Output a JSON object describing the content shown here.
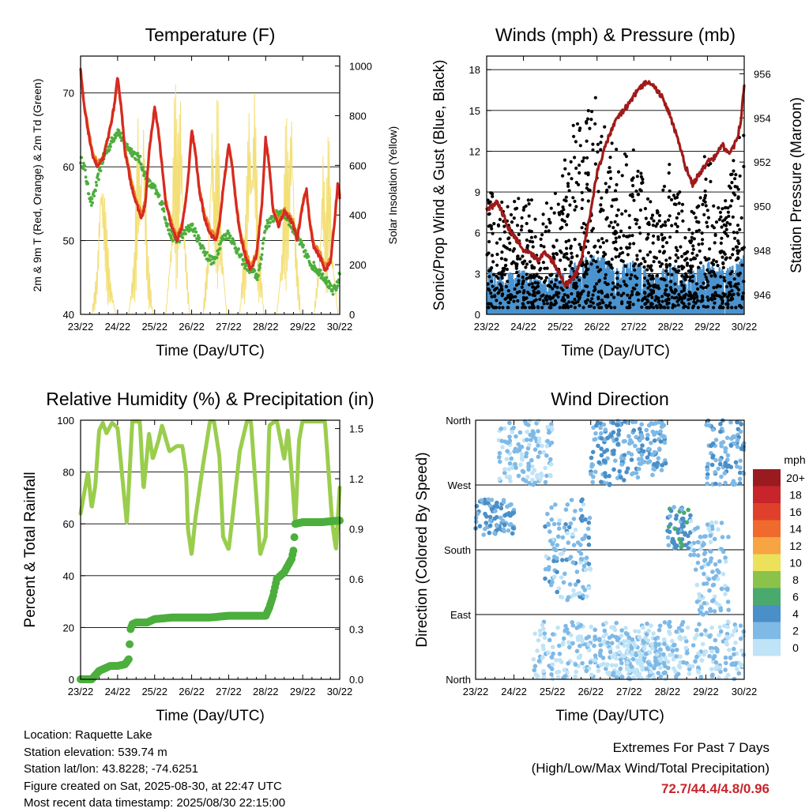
{
  "info": {
    "location": "Location: Raquette Lake",
    "elevation": "Station elevation: 539.74 m",
    "latlon": "Station lat/lon: 43.8228; -74.6251",
    "created": "Figure created on Sat, 2025-08-30, at 22:47 UTC",
    "recent": "Most recent data timestamp: 2025/08/30 22:15:00"
  },
  "extremes": {
    "title": "Extremes For Past 7 Days",
    "subtitle": "(High/Low/Max Wind/Total Precipitation)",
    "values": "72.7/44.4/4.8/0.96"
  },
  "colors": {
    "temp2m": "#d62a23",
    "temp9m": "#f08a24",
    "dewpoint": "#4cae3c",
    "solar": "#f3df77",
    "gust": "#000000",
    "sonic": "#4a93cf",
    "pressure": "#a01a1a",
    "rh": "#9acd4d",
    "precip": "#4cae3c"
  },
  "chart_data": [
    {
      "type": "line",
      "title": "Temperature (F)",
      "xlabel": "Time (Day/UTC)",
      "ylabel": "2m & 9m T (Red, Orange) & 2m Td (Green)",
      "y2label": "Solar Insolation (Yellow)",
      "x_ticks": [
        "23/22",
        "24/22",
        "25/22",
        "26/22",
        "27/22",
        "28/22",
        "29/22",
        "30/22"
      ],
      "xlim": [
        0,
        7
      ],
      "ylim": [
        40,
        75
      ],
      "y_ticks": [
        40,
        50,
        60,
        70
      ],
      "y2lim": [
        0,
        1040
      ],
      "y2_ticks": [
        0,
        200,
        400,
        600,
        800,
        1000
      ],
      "series": [
        {
          "key": "temp2m",
          "x": [
            0,
            0.1,
            0.2,
            0.3,
            0.45,
            0.6,
            0.75,
            0.9,
            1.0,
            1.1,
            1.2,
            1.35,
            1.5,
            1.65,
            1.75,
            1.85,
            2.0,
            2.1,
            2.2,
            2.3,
            2.45,
            2.6,
            2.75,
            2.9,
            3.0,
            3.1,
            3.2,
            3.35,
            3.5,
            3.65,
            3.75,
            3.85,
            4.0,
            4.1,
            4.2,
            4.3,
            4.45,
            4.6,
            4.75,
            4.9,
            5.0,
            5.1,
            5.2,
            5.35,
            5.5,
            5.65,
            5.75,
            5.85,
            6.0,
            6.1,
            6.2,
            6.3,
            6.45,
            6.6,
            6.75,
            6.85,
            6.95,
            7.0
          ],
          "values": [
            73,
            68,
            65,
            62,
            60,
            61,
            64,
            68,
            72,
            68,
            62,
            58,
            55,
            53,
            55,
            62,
            68,
            65,
            60,
            55,
            52,
            50,
            52,
            58,
            65,
            62,
            57,
            53,
            51,
            50,
            52,
            57,
            63,
            60,
            55,
            51,
            48,
            46,
            48,
            55,
            64,
            60,
            54,
            52,
            54,
            53,
            52,
            50,
            55,
            57,
            52,
            49,
            48,
            46,
            47,
            52,
            58,
            56
          ],
          "ylim": [
            40,
            75
          ]
        },
        {
          "key": "temp9m",
          "x": [
            0,
            0.1,
            0.2,
            0.3,
            0.45,
            0.6,
            0.75,
            0.9,
            1.0,
            1.1,
            1.2,
            1.35,
            1.5,
            1.65,
            1.75,
            1.85,
            2.0,
            2.1,
            2.2,
            2.3,
            2.45,
            2.6,
            2.75,
            2.9,
            3.0,
            3.1,
            3.2,
            3.35,
            3.5,
            3.65,
            3.75,
            3.85,
            4.0,
            4.1,
            4.2,
            4.3,
            4.45,
            4.6,
            4.75,
            4.9,
            5.0,
            5.1,
            5.2,
            5.35,
            5.5,
            5.65,
            5.75,
            5.85,
            6.0,
            6.1,
            6.2,
            6.3,
            6.45,
            6.6,
            6.75,
            6.85,
            6.95,
            7.0
          ],
          "values": [
            72.5,
            68.5,
            65.5,
            62.5,
            60.5,
            61.2,
            64.2,
            67.8,
            71.5,
            68.2,
            62.4,
            58.6,
            55.6,
            53.6,
            55.4,
            61.8,
            67.6,
            65.2,
            60.4,
            55.6,
            52.6,
            50.6,
            52.4,
            57.8,
            64.6,
            62.2,
            57.4,
            53.6,
            51.6,
            50.6,
            52.4,
            56.8,
            62.6,
            60.2,
            55.4,
            51.6,
            48.6,
            46.6,
            48.4,
            54.8,
            63.6,
            60.2,
            54.4,
            52.6,
            54.2,
            53.4,
            52.4,
            50.6,
            55.2,
            56.8,
            52.4,
            49.6,
            48.6,
            46.6,
            47.4,
            51.8,
            57.6,
            56.2
          ],
          "ylim": [
            40,
            75
          ]
        },
        {
          "key": "dewpoint",
          "x": [
            0,
            0.1,
            0.2,
            0.3,
            0.4,
            0.6,
            0.8,
            1.0,
            1.2,
            1.4,
            1.6,
            1.8,
            2.0,
            2.2,
            2.4,
            2.6,
            2.8,
            3.0,
            3.2,
            3.4,
            3.6,
            3.8,
            4.0,
            4.2,
            4.4,
            4.6,
            4.8,
            5.0,
            5.2,
            5.4,
            5.6,
            5.8,
            6.0,
            6.2,
            6.4,
            6.6,
            6.8,
            6.95,
            7.0
          ],
          "values": [
            61,
            60,
            57,
            55,
            57,
            61,
            63,
            65,
            63,
            62,
            61,
            58,
            57,
            55,
            51,
            50,
            51,
            52,
            50,
            48,
            47,
            50,
            51,
            49,
            47,
            46,
            45,
            52,
            53,
            54,
            53,
            51,
            49,
            47,
            46,
            45,
            43,
            44,
            46
          ],
          "ylim": [
            40,
            75
          ]
        },
        {
          "key": "solar",
          "x": [
            0,
            0.3,
            0.45,
            0.55,
            0.65,
            0.8,
            0.95,
            1.3,
            1.45,
            1.55,
            1.62,
            1.7,
            1.8,
            1.95,
            2.3,
            2.45,
            2.55,
            2.62,
            2.7,
            2.8,
            2.95,
            3.3,
            3.45,
            3.55,
            3.62,
            3.7,
            3.8,
            3.95,
            4.3,
            4.45,
            4.55,
            4.62,
            4.7,
            4.8,
            4.95,
            5.3,
            5.45,
            5.55,
            5.62,
            5.7,
            5.8,
            5.95,
            6.3,
            6.45,
            6.55,
            6.62,
            6.7,
            6.8,
            6.95,
            7.0
          ],
          "values": [
            0,
            0,
            200,
            650,
            500,
            150,
            0,
            0,
            250,
            820,
            600,
            900,
            300,
            0,
            0,
            350,
            1000,
            700,
            950,
            400,
            0,
            0,
            300,
            880,
            500,
            960,
            350,
            0,
            0,
            400,
            900,
            650,
            980,
            400,
            0,
            0,
            300,
            850,
            600,
            950,
            350,
            0,
            0,
            250,
            700,
            400,
            800,
            300,
            0,
            0
          ],
          "ylim": [
            0,
            1040
          ]
        }
      ]
    },
    {
      "type": "scatter",
      "title": "Winds (mph) & Pressure (mb)",
      "xlabel": "Time (Day/UTC)",
      "ylabel": "Sonic/Prop Wind & Gust (Blue, Black)",
      "y2label": "Station Pressure (Maroon)",
      "x_ticks": [
        "23/22",
        "24/22",
        "25/22",
        "26/22",
        "27/22",
        "28/22",
        "29/22",
        "30/22"
      ],
      "xlim": [
        0,
        7
      ],
      "ylim": [
        0,
        19
      ],
      "y_ticks": [
        0,
        3,
        6,
        9,
        12,
        15,
        18
      ],
      "y2lim": [
        945.1,
        956.8
      ],
      "y2_ticks": [
        946,
        948,
        950,
        952,
        954,
        956
      ],
      "wind_activity": {
        "x": [
          0,
          0.5,
          1.0,
          1.5,
          2.0,
          2.5,
          3.0,
          3.5,
          4.0,
          4.5,
          5.0,
          5.5,
          6.0,
          6.5,
          7.0
        ],
        "gust_peak": [
          9,
          7,
          8,
          6,
          9,
          14,
          15,
          11,
          12,
          7,
          10,
          6,
          11,
          8,
          14
        ],
        "sonic_peak": [
          3.2,
          2.8,
          3.0,
          2.4,
          3.0,
          3.6,
          4.2,
          3.2,
          3.8,
          2.6,
          3.5,
          2.8,
          3.6,
          3.0,
          4.4
        ]
      },
      "series": [
        {
          "key": "pressure",
          "x": [
            0,
            0.15,
            0.3,
            0.45,
            0.6,
            0.8,
            1.0,
            1.2,
            1.4,
            1.6,
            1.8,
            2.0,
            2.15,
            2.3,
            2.45,
            2.6,
            2.8,
            3.0,
            3.2,
            3.4,
            3.6,
            3.8,
            4.0,
            4.2,
            4.4,
            4.6,
            4.8,
            5.0,
            5.2,
            5.4,
            5.6,
            5.8,
            6.0,
            6.2,
            6.4,
            6.6,
            6.8,
            6.9,
            7.0
          ],
          "values": [
            949.9,
            950.0,
            950.2,
            949.6,
            949.0,
            948.5,
            948.0,
            947.8,
            947.6,
            947.9,
            947.5,
            946.9,
            946.4,
            946.7,
            947.0,
            947.8,
            949.5,
            951.5,
            952.6,
            953.5,
            954.1,
            954.5,
            955.0,
            955.4,
            955.7,
            955.3,
            954.9,
            954.0,
            953.0,
            951.8,
            951.0,
            951.5,
            952.0,
            952.2,
            952.8,
            952.3,
            953.0,
            953.8,
            955.4
          ],
          "ylim": [
            945.1,
            956.8
          ]
        }
      ]
    },
    {
      "type": "line",
      "title": "Relative Humidity (%) & Precipitation (in)",
      "xlabel": "Time (Day/UTC)",
      "ylabel": "Percent & Total Rainfall",
      "x_ticks": [
        "23/22",
        "24/22",
        "25/22",
        "26/22",
        "27/22",
        "28/22",
        "29/22",
        "30/22"
      ],
      "xlim": [
        0,
        7
      ],
      "ylim": [
        0,
        100
      ],
      "y_ticks": [
        0,
        20,
        40,
        60,
        80,
        100
      ],
      "y2lim": [
        0,
        1.55
      ],
      "y2_ticks": [
        0.0,
        0.3,
        0.6,
        0.9,
        1.2,
        1.5
      ],
      "series": [
        {
          "key": "rh",
          "x": [
            0,
            0.1,
            0.2,
            0.3,
            0.4,
            0.5,
            0.6,
            0.7,
            0.85,
            1.0,
            1.1,
            1.25,
            1.4,
            1.6,
            1.7,
            1.85,
            1.95,
            2.1,
            2.2,
            2.4,
            2.6,
            2.75,
            2.85,
            2.9,
            3.0,
            3.1,
            3.3,
            3.5,
            3.6,
            3.75,
            3.85,
            4.0,
            4.1,
            4.3,
            4.5,
            4.6,
            4.75,
            4.85,
            5.0,
            5.1,
            5.3,
            5.5,
            5.6,
            5.7,
            5.8,
            5.9,
            6.0,
            6.2,
            6.4,
            6.6,
            6.8,
            6.9,
            7.0
          ],
          "values": [
            64,
            72,
            80,
            66,
            75,
            96,
            99,
            95,
            99,
            97,
            82,
            60,
            100,
            100,
            73,
            95,
            85,
            92,
            98,
            88,
            90,
            90,
            80,
            58,
            48,
            62,
            82,
            100,
            100,
            86,
            55,
            50,
            62,
            88,
            100,
            100,
            70,
            48,
            55,
            98,
            100,
            85,
            96,
            80,
            60,
            92,
            100,
            100,
            100,
            100,
            60,
            50,
            74
          ]
        },
        {
          "key": "precip",
          "x": [
            0,
            0.3,
            0.5,
            0.8,
            1.0,
            1.2,
            1.3,
            1.35,
            1.4,
            1.5,
            1.8,
            2.0,
            2.5,
            3.0,
            3.5,
            4.0,
            4.5,
            4.8,
            5.0,
            5.1,
            5.2,
            5.3,
            5.5,
            5.6,
            5.7,
            5.75,
            5.8,
            6.0,
            6.5,
            7.0
          ],
          "values": [
            0,
            0,
            0.05,
            0.08,
            0.08,
            0.09,
            0.12,
            0.3,
            0.33,
            0.34,
            0.34,
            0.36,
            0.37,
            0.37,
            0.37,
            0.38,
            0.38,
            0.38,
            0.38,
            0.43,
            0.5,
            0.6,
            0.64,
            0.68,
            0.72,
            0.77,
            0.93,
            0.94,
            0.94,
            0.95
          ],
          "ylim": [
            0,
            1.55
          ]
        }
      ]
    },
    {
      "type": "scatter",
      "title": "Wind Direction",
      "xlabel": "Time (Day/UTC)",
      "ylabel": "Direction (Colored By Speed)",
      "x_ticks": [
        "23/22",
        "24/22",
        "25/22",
        "26/22",
        "27/22",
        "28/22",
        "29/22",
        "30/22"
      ],
      "xlim": [
        0,
        7
      ],
      "y_ticks": [
        "North",
        "East",
        "South",
        "West",
        "North"
      ],
      "ylim": [
        0,
        360
      ],
      "legend": {
        "title": "mph",
        "position": "right",
        "labels": [
          "20+",
          "18",
          "16",
          "14",
          "12",
          "10",
          "8",
          "6",
          "4",
          "2",
          "0"
        ],
        "colors": [
          "#9a1b1f",
          "#c8242b",
          "#e0402b",
          "#ef6a2c",
          "#f7a442",
          "#ece15a",
          "#8bc34a",
          "#4aaa6e",
          "#4a8fc7",
          "#7fb9e6",
          "#bfe3f7"
        ]
      },
      "direction_clusters": [
        {
          "x": [
            0.0,
            1.0
          ],
          "dir": [
            200,
            250
          ],
          "speed": 3.5
        },
        {
          "x": [
            0.6,
            2.0
          ],
          "dir": [
            270,
            360
          ],
          "speed": 1.5
        },
        {
          "x": [
            1.8,
            3.0
          ],
          "dir": [
            110,
            250
          ],
          "speed": 2.0
        },
        {
          "x": [
            3.0,
            4.0
          ],
          "dir": [
            270,
            360
          ],
          "speed": 3.0
        },
        {
          "x": [
            3.6,
            5.0
          ],
          "dir": [
            0,
            60
          ],
          "speed": 1.0
        },
        {
          "x": [
            4.0,
            5.0
          ],
          "dir": [
            280,
            360
          ],
          "speed": 2.5
        },
        {
          "x": [
            5.0,
            5.6
          ],
          "dir": [
            180,
            240
          ],
          "speed": 4.0
        },
        {
          "x": [
            5.6,
            6.6
          ],
          "dir": [
            90,
            220
          ],
          "speed": 1.5
        },
        {
          "x": [
            6.0,
            7.0
          ],
          "dir": [
            270,
            360
          ],
          "speed": 2.5
        },
        {
          "x": [
            1.5,
            7.0
          ],
          "dir": [
            0,
            80
          ],
          "speed": 1.0
        }
      ]
    }
  ]
}
